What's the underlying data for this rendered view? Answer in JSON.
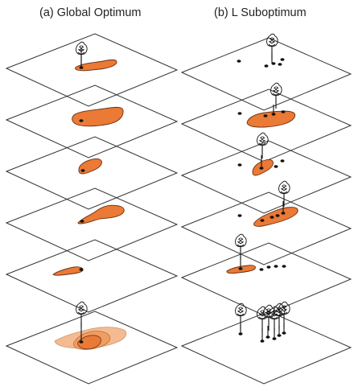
{
  "panels": [
    {
      "id": "a",
      "title": "(a) Global Optimum"
    },
    {
      "id": "b",
      "title": "(b) L Suboptimum"
    }
  ],
  "colors": {
    "plane_stroke": "#333333",
    "region_fill": "#ea7a35",
    "region_stroke": "#6a2f12",
    "region_light_fill": "#f3b07f",
    "point_fill": "#111111",
    "tree_stroke": "#111111"
  },
  "icons": {
    "tree": "tree-icon",
    "point": "dot-marker"
  }
}
